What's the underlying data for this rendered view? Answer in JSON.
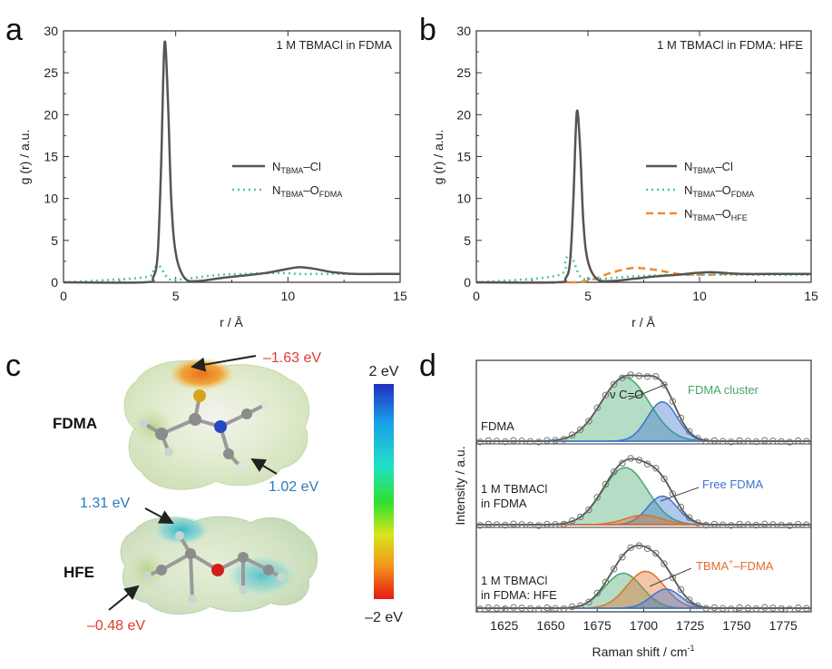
{
  "panels": {
    "a": {
      "letter": "a",
      "annotation": "1 M TBMACl in FDMA",
      "legend": [
        {
          "main": "N",
          "sub1": "TBMA",
          "mid": "–Cl",
          "sub2": ""
        },
        {
          "main": "N",
          "sub1": "TBMA",
          "mid": "–O",
          "sub2": "FDMA"
        }
      ]
    },
    "b": {
      "letter": "b",
      "annotation": "1 M TBMACl in FDMA: HFE",
      "legend": [
        {
          "main": "N",
          "sub1": "TBMA",
          "mid": "–Cl",
          "sub2": ""
        },
        {
          "main": "N",
          "sub1": "TBMA",
          "mid": "–O",
          "sub2": "FDMA"
        },
        {
          "main": "N",
          "sub1": "TBMA",
          "mid": "–O",
          "sub2": "HFE"
        }
      ]
    },
    "c": {
      "letter": "c",
      "fdma_label": "FDMA",
      "hfe_label": "HFE",
      "ann": [
        "–1.63 eV",
        "1.02 eV",
        "1.31 eV",
        "–0.48 eV"
      ],
      "colorbar_max": "2 eV",
      "colorbar_min": "–2 eV"
    },
    "d": {
      "letter": "d",
      "ylabel": "Intensity / a.u.",
      "xlabel": "Raman shift / cm",
      "xlabel_sup": "-1",
      "nu_label": "ν C=O",
      "rows": [
        {
          "sample": [
            "FDMA"
          ],
          "callout": "FDMA cluster",
          "callout_sup": ""
        },
        {
          "sample": [
            "1 M TBMACl",
            "in FDMA"
          ],
          "callout": "Free FDMA",
          "callout_sup": ""
        },
        {
          "sample": [
            "1 M TBMACl",
            "in FDMA: HFE"
          ],
          "callout": "TBMA–FDMA",
          "callout_sup": "+"
        }
      ]
    }
  },
  "colors": {
    "cl": "#555555",
    "ofdma": "#4fc1b4",
    "ohfe": "#ef8a2c",
    "cluster": "#45a76c",
    "free": "#3c74d0",
    "tbma": "#e0702b",
    "red": "#e03c31",
    "blue": "#2b7bb9"
  },
  "chart_data": [
    {
      "type": "line",
      "id": "a",
      "title": "1 M TBMACl in FDMA",
      "xlabel": "r / Å",
      "ylabel": "g (r) / a.u.",
      "xlim": [
        0,
        15
      ],
      "ylim": [
        0,
        30
      ],
      "xticks": [
        0,
        5,
        10,
        15
      ],
      "yticks": [
        0,
        5,
        10,
        15,
        20,
        25,
        30
      ],
      "x": [
        0,
        3.6,
        4.0,
        4.2,
        4.35,
        4.5,
        4.65,
        4.8,
        5.0,
        5.4,
        6.0,
        7.0,
        8.0,
        9.0,
        9.8,
        10.5,
        11.2,
        12.0,
        13.0,
        14.0,
        15.0
      ],
      "series": [
        {
          "name": "NTBMA–Cl",
          "style": "solid",
          "values": [
            0,
            0,
            0.6,
            3.5,
            14,
            28.5,
            22,
            10,
            3.5,
            0.5,
            0.15,
            0.5,
            0.8,
            1.1,
            1.5,
            1.8,
            1.6,
            1.2,
            1.0,
            1.0,
            1.0
          ]
        },
        {
          "name": "NTBMA–OFDMA",
          "style": "dotted",
          "values": [
            0,
            0.6,
            1.6,
            2.0,
            1.7,
            1.0,
            0.5,
            0.3,
            0.3,
            0.4,
            0.6,
            0.9,
            1.0,
            1.1,
            1.1,
            1.0,
            1.0,
            1.0,
            1.0,
            1.0,
            1.0
          ]
        }
      ]
    },
    {
      "type": "line",
      "id": "b",
      "title": "1 M TBMACl in FDMA: HFE",
      "xlabel": "r / Å",
      "ylabel": "g (r) / a.u.",
      "xlim": [
        0,
        15
      ],
      "ylim": [
        0,
        30
      ],
      "xticks": [
        0,
        5,
        10,
        15
      ],
      "yticks": [
        0,
        5,
        10,
        15,
        20,
        25,
        30
      ],
      "x": [
        0,
        3.6,
        4.0,
        4.2,
        4.35,
        4.5,
        4.65,
        4.8,
        5.0,
        5.4,
        6.0,
        7.0,
        8.0,
        9.0,
        9.8,
        10.5,
        11.2,
        12.0,
        13.0,
        14.0,
        15.0
      ],
      "series": [
        {
          "name": "NTBMA–Cl",
          "style": "solid",
          "values": [
            0,
            0,
            0.5,
            2.5,
            10,
            20.3,
            16,
            7,
            2.5,
            0.4,
            0.15,
            0.4,
            0.7,
            0.9,
            1.1,
            1.2,
            1.1,
            1.0,
            1.0,
            1.0,
            1.0
          ]
        },
        {
          "name": "NTBMA–OFDMA",
          "style": "dotted",
          "values": [
            0,
            0.8,
            2.8,
            3.2,
            2.6,
            1.5,
            0.7,
            0.4,
            0.4,
            0.4,
            0.5,
            0.7,
            0.8,
            0.9,
            0.9,
            0.9,
            0.9,
            0.9,
            0.9,
            0.9,
            0.9
          ]
        },
        {
          "name": "NTBMA–OHFE",
          "style": "dashed",
          "values": [
            0,
            0,
            0,
            0,
            0,
            0,
            0.05,
            0.1,
            0.2,
            0.5,
            1.1,
            1.7,
            1.5,
            1.0,
            0.9,
            0.9,
            1.0,
            1.0,
            1.0,
            1.0,
            1.0
          ]
        }
      ]
    },
    {
      "type": "line",
      "id": "d",
      "title": "",
      "xlabel": "Raman shift / cm-1",
      "ylabel": "Intensity / a.u.",
      "xlim": [
        1610,
        1790
      ],
      "xticks": [
        1625,
        1650,
        1675,
        1700,
        1725,
        1750,
        1775
      ],
      "rows": [
        {
          "label": "FDMA",
          "peaks": [
            {
              "name": "FDMA cluster",
              "center": 1690,
              "height": 1.0,
              "width": 13
            },
            {
              "name": "Free FDMA",
              "center": 1710,
              "height": 0.62,
              "width": 8
            }
          ]
        },
        {
          "label": "1 M TBMACl in FDMA",
          "peaks": [
            {
              "name": "FDMA cluster",
              "center": 1690,
              "height": 0.9,
              "width": 12
            },
            {
              "name": "Free FDMA",
              "center": 1710,
              "height": 0.45,
              "width": 8
            },
            {
              "name": "TBMA+–FDMA",
              "center": 1700,
              "height": 0.15,
              "width": 10
            }
          ]
        },
        {
          "label": "1 M TBMACl in FDMA: HFE",
          "peaks": [
            {
              "name": "FDMA cluster",
              "center": 1689,
              "height": 0.55,
              "width": 10
            },
            {
              "name": "TBMA+–FDMA",
              "center": 1701,
              "height": 0.58,
              "width": 10
            },
            {
              "name": "Free FDMA",
              "center": 1712,
              "height": 0.3,
              "width": 8
            }
          ]
        }
      ]
    }
  ]
}
